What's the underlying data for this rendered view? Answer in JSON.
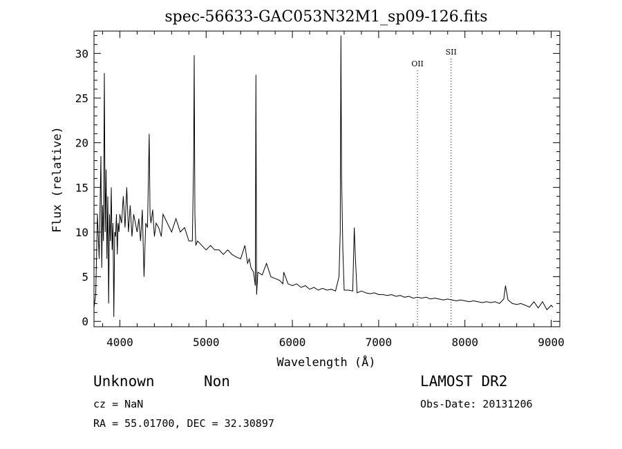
{
  "chart_data": {
    "type": "line",
    "title": "spec-56633-GAC053N32M1_sp09-126.fits",
    "xlabel": "Wavelength (Å)",
    "ylabel": "Flux (relative)",
    "xlim": [
      3700,
      9100
    ],
    "ylim": [
      -0.6,
      32.5
    ],
    "xticks": [
      4000,
      5000,
      6000,
      7000,
      8000,
      9000
    ],
    "yticks": [
      0,
      5,
      10,
      15,
      20,
      25,
      30
    ],
    "grid": false,
    "series": [
      {
        "x": [
          3700,
          3720,
          3740,
          3760,
          3780,
          3790,
          3800,
          3810,
          3820,
          3830,
          3840,
          3850,
          3860,
          3870,
          3880,
          3890,
          3900,
          3910,
          3920,
          3930,
          3940,
          3950,
          3960,
          3970,
          3980,
          3990,
          4000,
          4020,
          4040,
          4060,
          4080,
          4100,
          4120,
          4140,
          4160,
          4180,
          4200,
          4220,
          4240,
          4260,
          4280,
          4300,
          4320,
          4340,
          4350,
          4360,
          4380,
          4400,
          4420,
          4450,
          4480,
          4500,
          4550,
          4600,
          4650,
          4700,
          4750,
          4800,
          4840,
          4855,
          4862,
          4870,
          4880,
          4900,
          4950,
          5000,
          5050,
          5100,
          5150,
          5200,
          5250,
          5300,
          5350,
          5400,
          5450,
          5480,
          5500,
          5520,
          5550,
          5570,
          5577,
          5585,
          5600,
          5650,
          5700,
          5750,
          5800,
          5850,
          5890,
          5900,
          5950,
          6000,
          6050,
          6100,
          6150,
          6200,
          6250,
          6300,
          6350,
          6400,
          6450,
          6500,
          6540,
          6555,
          6563,
          6570,
          6585,
          6600,
          6650,
          6700,
          6717,
          6731,
          6750,
          6800,
          6850,
          6900,
          6950,
          7000,
          7050,
          7100,
          7150,
          7200,
          7250,
          7300,
          7350,
          7400,
          7450,
          7500,
          7550,
          7600,
          7650,
          7700,
          7750,
          7800,
          7850,
          7900,
          7950,
          8000,
          8050,
          8100,
          8150,
          8200,
          8250,
          8300,
          8350,
          8400,
          8450,
          8470,
          8500,
          8550,
          8600,
          8650,
          8700,
          8750,
          8800,
          8850,
          8900,
          8950,
          9000,
          9020
        ],
        "values": [
          1.5,
          3.0,
          12.0,
          7.0,
          18.5,
          6.0,
          13.0,
          9.0,
          27.8,
          10.0,
          17.0,
          7.0,
          14.0,
          2.0,
          12.0,
          9.0,
          15.0,
          8.0,
          11.0,
          0.5,
          10.0,
          9.5,
          12.0,
          7.5,
          11.0,
          10.0,
          12.0,
          11.0,
          14.0,
          10.5,
          15.0,
          10.0,
          13.0,
          9.5,
          12.0,
          11.0,
          10.0,
          11.5,
          9.0,
          12.5,
          5.0,
          11.0,
          10.5,
          21.0,
          12.0,
          11.0,
          12.5,
          9.5,
          11.0,
          10.5,
          9.5,
          12.0,
          11.0,
          10.0,
          11.5,
          10.0,
          10.5,
          9.0,
          9.0,
          18.0,
          29.8,
          12.0,
          8.5,
          9.0,
          8.5,
          8.0,
          8.5,
          8.0,
          8.0,
          7.5,
          8.0,
          7.5,
          7.2,
          7.0,
          8.5,
          6.5,
          7.0,
          6.0,
          5.5,
          4.0,
          27.6,
          3.0,
          5.5,
          5.2,
          6.5,
          5.0,
          4.8,
          4.6,
          4.2,
          5.5,
          4.2,
          4.0,
          4.2,
          3.8,
          4.0,
          3.6,
          3.8,
          3.5,
          3.7,
          3.5,
          3.6,
          3.4,
          5.0,
          10.0,
          32.0,
          16.5,
          8.0,
          3.5,
          3.5,
          3.4,
          10.5,
          7.0,
          3.2,
          3.4,
          3.2,
          3.1,
          3.2,
          3.0,
          3.0,
          2.9,
          3.0,
          2.8,
          2.9,
          2.7,
          2.8,
          2.6,
          2.7,
          2.6,
          2.7,
          2.5,
          2.6,
          2.5,
          2.4,
          2.5,
          2.4,
          2.3,
          2.4,
          2.3,
          2.2,
          2.3,
          2.2,
          2.1,
          2.2,
          2.1,
          2.2,
          2.0,
          2.5,
          4.0,
          2.4,
          2.0,
          1.9,
          2.0,
          1.8,
          1.6,
          2.2,
          1.5,
          2.2,
          1.3,
          1.8,
          1.6
        ]
      }
    ],
    "annotations": [
      {
        "label": "OII",
        "x": 7450
      },
      {
        "label": "SII",
        "x": 7840
      }
    ]
  },
  "info": {
    "object_class": "Unknown",
    "object_subclass": "Non",
    "redshift_line": "cz = NaN",
    "coords_line": "RA =  55.01700, DEC =  32.30897",
    "survey": "LAMOST DR2",
    "obs_date_line": "Obs-Date: 20131206"
  }
}
